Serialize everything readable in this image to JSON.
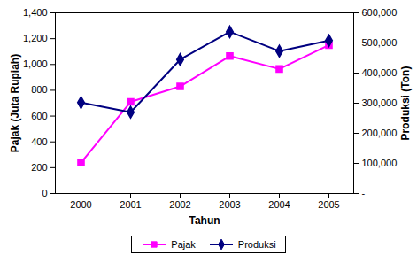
{
  "chart_data": {
    "type": "line",
    "x_label": "Tahun",
    "y_label": "Pajak (Juta Rupiah)",
    "y2_label": "Produksi (Ton)",
    "categories": [
      "2000",
      "2001",
      "2002",
      "2003",
      "2004",
      "2005"
    ],
    "series": [
      {
        "name": "Pajak",
        "color": "#ff00ff",
        "marker": "square",
        "axis": "y",
        "values": [
          240,
          710,
          830,
          1065,
          965,
          1150
        ]
      },
      {
        "name": "Produksi",
        "color": "#000080",
        "marker": "diamond",
        "axis": "y2",
        "values": [
          302000,
          270000,
          445000,
          537000,
          473000,
          508000
        ]
      }
    ],
    "ylim": [
      0,
      1400
    ],
    "yticks": [
      0,
      200,
      400,
      600,
      800,
      {
        "value": 1000,
        "label": "1,000"
      },
      {
        "value": 1200,
        "label": "1,200"
      },
      {
        "value": 1400,
        "label": "1,400"
      }
    ],
    "y2lim": [
      0,
      600000
    ],
    "y2ticks": [
      {
        "value": 0,
        "label": "-"
      },
      {
        "value": 100000,
        "label": "100,000"
      },
      {
        "value": 200000,
        "label": "200,000"
      },
      {
        "value": 300000,
        "label": "300,000"
      },
      {
        "value": 400000,
        "label": "400,000"
      },
      {
        "value": 500000,
        "label": "500,000"
      },
      {
        "value": 600000,
        "label": "600,000"
      }
    ],
    "legend": "bottom",
    "grid": false
  }
}
